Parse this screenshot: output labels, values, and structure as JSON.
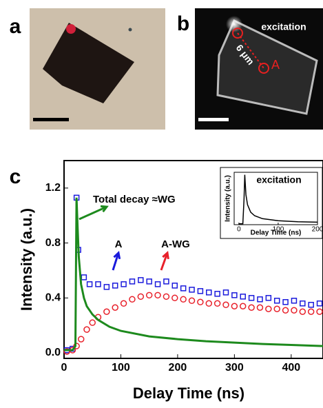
{
  "panels": {
    "a": {
      "label": "a"
    },
    "b": {
      "label": "b",
      "annotations": [
        "excitation",
        "6 μm",
        "A"
      ]
    },
    "c": {
      "label": "c"
    }
  },
  "chart_data": [
    {
      "type": "scatter",
      "xlabel": "Delay Time (ns)",
      "ylabel": "Intensity (a.u.)",
      "xlim": [
        0,
        456
      ],
      "ylim": [
        -0.04,
        1.4
      ],
      "xticks": [
        0,
        100,
        200,
        300,
        400
      ],
      "yticks": [
        {
          "value": 0,
          "label": "0.0"
        },
        0.4,
        0.8,
        1.2
      ],
      "annotations": [
        "Total decay ≈WG",
        "A",
        "A-WG"
      ],
      "series": [
        {
          "marker": "square",
          "color": "#1a1adc",
          "x": [
            5,
            15,
            22,
            25,
            35,
            45,
            60,
            75,
            90,
            105,
            120,
            135,
            150,
            165,
            180,
            195,
            210,
            225,
            240,
            255,
            270,
            285,
            300,
            315,
            330,
            345,
            360,
            375,
            390,
            405,
            420,
            435,
            450
          ],
          "values": [
            0.02,
            0.03,
            1.13,
            0.75,
            0.55,
            0.5,
            0.5,
            0.48,
            0.49,
            0.5,
            0.52,
            0.53,
            0.52,
            0.5,
            0.52,
            0.49,
            0.47,
            0.46,
            0.45,
            0.44,
            0.43,
            0.44,
            0.42,
            0.41,
            0.4,
            0.39,
            0.4,
            0.38,
            0.37,
            0.38,
            0.36,
            0.35,
            0.36
          ]
        },
        {
          "marker": "circle",
          "color": "#e8202a",
          "x": [
            5,
            15,
            22,
            30,
            40,
            50,
            60,
            75,
            90,
            105,
            120,
            135,
            150,
            165,
            180,
            195,
            210,
            225,
            240,
            255,
            270,
            285,
            300,
            315,
            330,
            345,
            360,
            375,
            390,
            405,
            420,
            435,
            450
          ],
          "values": [
            0.01,
            0.02,
            0.05,
            0.1,
            0.17,
            0.22,
            0.26,
            0.3,
            0.33,
            0.36,
            0.39,
            0.41,
            0.42,
            0.42,
            0.41,
            0.4,
            0.39,
            0.38,
            0.37,
            0.36,
            0.36,
            0.35,
            0.34,
            0.34,
            0.33,
            0.33,
            0.32,
            0.32,
            0.31,
            0.31,
            0.3,
            0.3,
            0.3
          ]
        },
        {
          "marker": "line",
          "color": "#1d8a1d",
          "x": [
            0,
            15,
            20,
            22,
            24,
            26,
            30,
            35,
            40,
            50,
            60,
            80,
            100,
            150,
            200,
            250,
            300,
            350,
            400,
            456
          ],
          "values": [
            0.02,
            0.02,
            0.05,
            1.13,
            0.9,
            0.7,
            0.5,
            0.4,
            0.34,
            0.28,
            0.24,
            0.19,
            0.16,
            0.12,
            0.1,
            0.085,
            0.075,
            0.065,
            0.058,
            0.05
          ]
        }
      ]
    },
    {
      "type": "line",
      "title": "excitation",
      "xlabel": "Delay Time (ns)",
      "ylabel": "Intensity (a.u.)",
      "xlim": [
        -12,
        200
      ],
      "ylim": [
        0,
        1.05
      ],
      "xticks": [
        0,
        100,
        200
      ],
      "series": [
        {
          "marker": "line",
          "color": "#000000",
          "x": [
            0,
            10,
            13,
            15,
            18,
            22,
            30,
            40,
            60,
            100,
            150,
            200
          ],
          "values": [
            0.02,
            0.02,
            0.5,
            1,
            0.6,
            0.4,
            0.25,
            0.18,
            0.12,
            0.08,
            0.06,
            0.05
          ]
        }
      ]
    }
  ]
}
